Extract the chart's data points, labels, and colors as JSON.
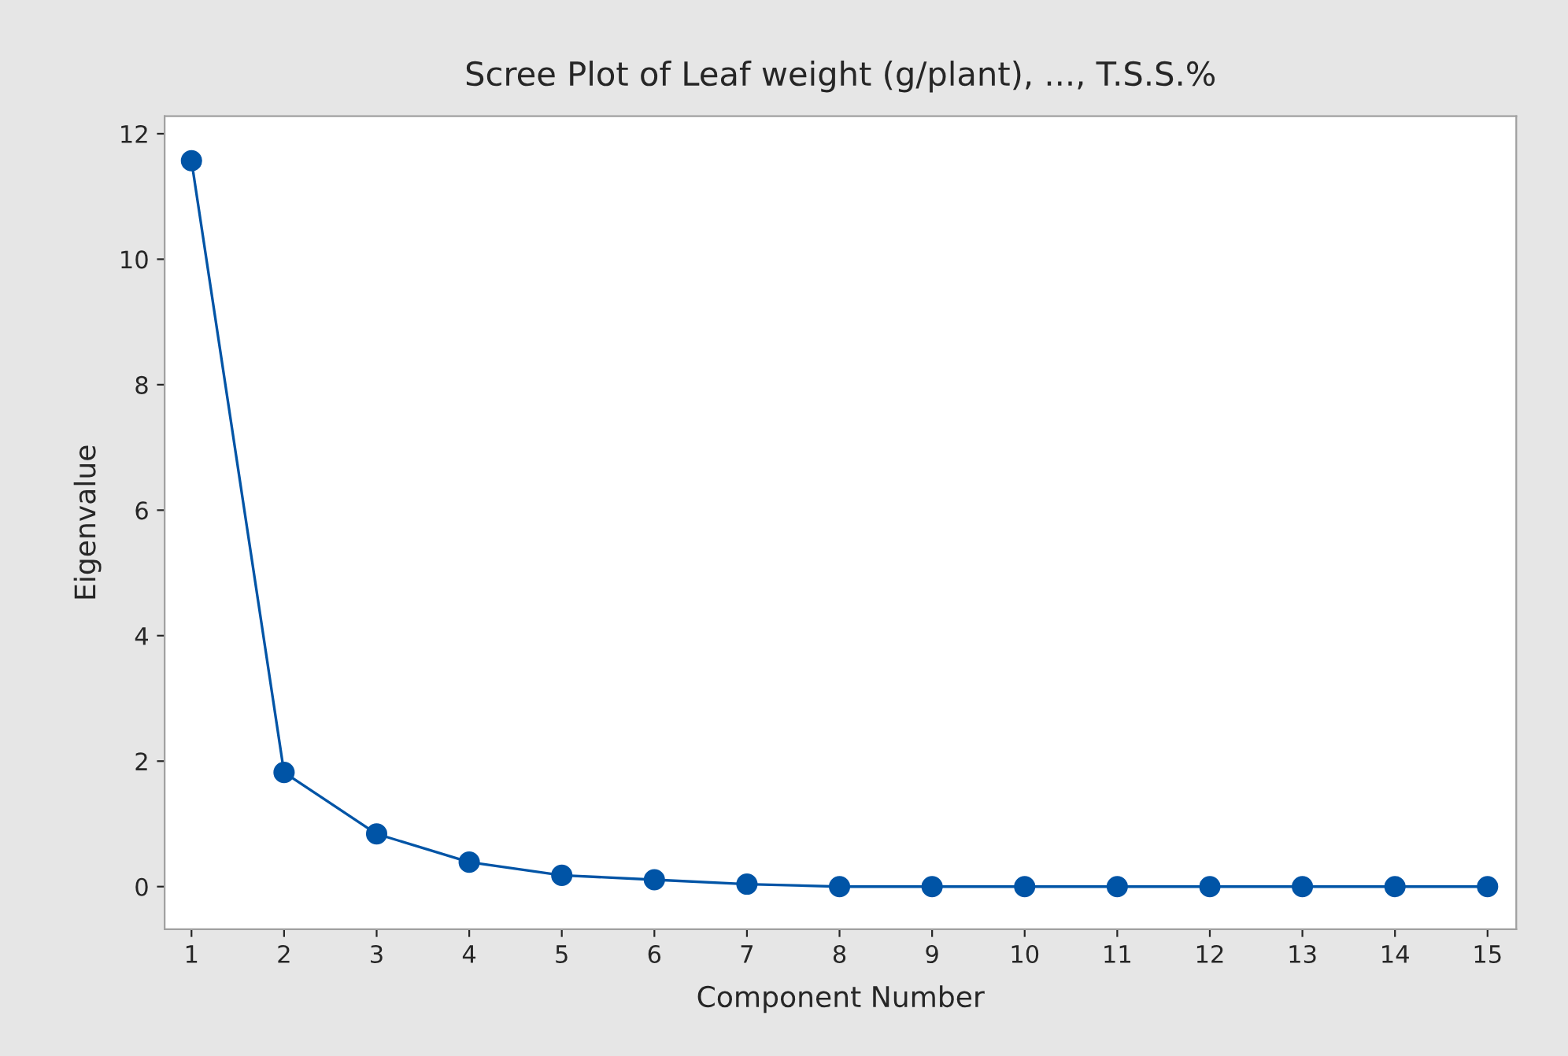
{
  "chart_data": {
    "type": "line",
    "title": "Scree Plot of Leaf weight (g/plant), ..., T.S.S.%",
    "xlabel": "Component Number",
    "ylabel": "Eigenvalue",
    "x": [
      1,
      2,
      3,
      4,
      5,
      6,
      7,
      8,
      9,
      10,
      11,
      12,
      13,
      14,
      15
    ],
    "series": [
      {
        "color": "#0054a6",
        "values": [
          11.57,
          1.82,
          0.84,
          0.39,
          0.18,
          0.11,
          0.04,
          0,
          0,
          0,
          0,
          0,
          0,
          0,
          0
        ]
      }
    ],
    "xlim": [
      0.71,
      15.31
    ],
    "xticks": [
      1,
      2,
      3,
      4,
      5,
      6,
      7,
      8,
      9,
      10,
      11,
      12,
      13,
      14,
      15
    ],
    "ylim": [
      -0.68,
      12.28
    ],
    "yticks": [
      0,
      2,
      4,
      6,
      8,
      10,
      12
    ],
    "grid": false,
    "marker": "circle",
    "line_style": "solid"
  }
}
